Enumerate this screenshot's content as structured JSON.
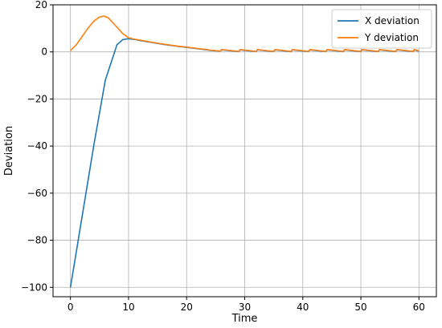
{
  "chart_data": {
    "type": "line",
    "title": "",
    "xlabel": "Time",
    "ylabel": "Deviation",
    "xlim": [
      -3,
      63
    ],
    "ylim": [
      -104,
      20
    ],
    "xticks": [
      0,
      10,
      20,
      30,
      40,
      50,
      60
    ],
    "yticks": [
      -100,
      -80,
      -60,
      -40,
      -20,
      0,
      20
    ],
    "xtick_labels": [
      "0",
      "10",
      "20",
      "30",
      "40",
      "50",
      "60"
    ],
    "ytick_labels": [
      "−100",
      "−80",
      "−60",
      "−40",
      "−20",
      "0",
      "20"
    ],
    "grid": true,
    "legend_position": "top-right",
    "series": [
      {
        "name": "X deviation",
        "color": "#1f77b4",
        "x": [
          0,
          2,
          4,
          6,
          8,
          9,
          10,
          11,
          12,
          14,
          16,
          18,
          20,
          22,
          24,
          25.8,
          26,
          28,
          29,
          29.2,
          31,
          32,
          32.2,
          34,
          35,
          35.2,
          37,
          38,
          38.2,
          40,
          41,
          41.2,
          43,
          44,
          44.2,
          46,
          47,
          47.2,
          49,
          50,
          50.2,
          52,
          53,
          53.2,
          55,
          56,
          56.2,
          58,
          59,
          59.2,
          60
        ],
        "y": [
          -100,
          -70,
          -40,
          -12,
          3,
          5.2,
          5.6,
          5.3,
          4.8,
          4.0,
          3.2,
          2.5,
          1.9,
          1.3,
          0.7,
          0.3,
          0.9,
          0.4,
          0.2,
          0.9,
          0.4,
          0.2,
          0.9,
          0.4,
          0.2,
          0.9,
          0.4,
          0.2,
          0.9,
          0.4,
          0.2,
          0.9,
          0.4,
          0.2,
          0.9,
          0.4,
          0.2,
          0.9,
          0.4,
          0.2,
          0.9,
          0.4,
          0.2,
          0.9,
          0.4,
          0.2,
          0.9,
          0.4,
          0.2,
          0.9,
          0.3
        ]
      },
      {
        "name": "Y deviation",
        "color": "#ff7f0e",
        "x": [
          0,
          1,
          2,
          3,
          4,
          5,
          5.8,
          6.5,
          7,
          8,
          9,
          10,
          11,
          12,
          14,
          16,
          18,
          20,
          22,
          24,
          25.8,
          26,
          28,
          29,
          29.2,
          31,
          32,
          32.2,
          34,
          35,
          35.2,
          37,
          38,
          38.2,
          40,
          41,
          41.2,
          43,
          44,
          44.2,
          46,
          47,
          47.2,
          49,
          50,
          50.2,
          52,
          53,
          53.2,
          55,
          56,
          56.2,
          58,
          59,
          59.2,
          60
        ],
        "y": [
          0.5,
          3,
          6.5,
          10,
          13,
          14.8,
          15.2,
          14.5,
          13.2,
          10.5,
          7.8,
          6,
          5.4,
          5,
          4.1,
          3.3,
          2.6,
          2.0,
          1.4,
          0.8,
          0.3,
          1.0,
          0.5,
          0.2,
          1.0,
          0.5,
          0.2,
          1.0,
          0.5,
          0.2,
          1.0,
          0.5,
          0.2,
          1.0,
          0.5,
          0.2,
          1.0,
          0.5,
          0.2,
          1.0,
          0.5,
          0.2,
          1.0,
          0.5,
          0.2,
          1.0,
          0.5,
          0.2,
          1.0,
          0.5,
          0.2,
          1.0,
          0.5,
          0.2,
          1.0,
          0.4
        ]
      }
    ]
  }
}
